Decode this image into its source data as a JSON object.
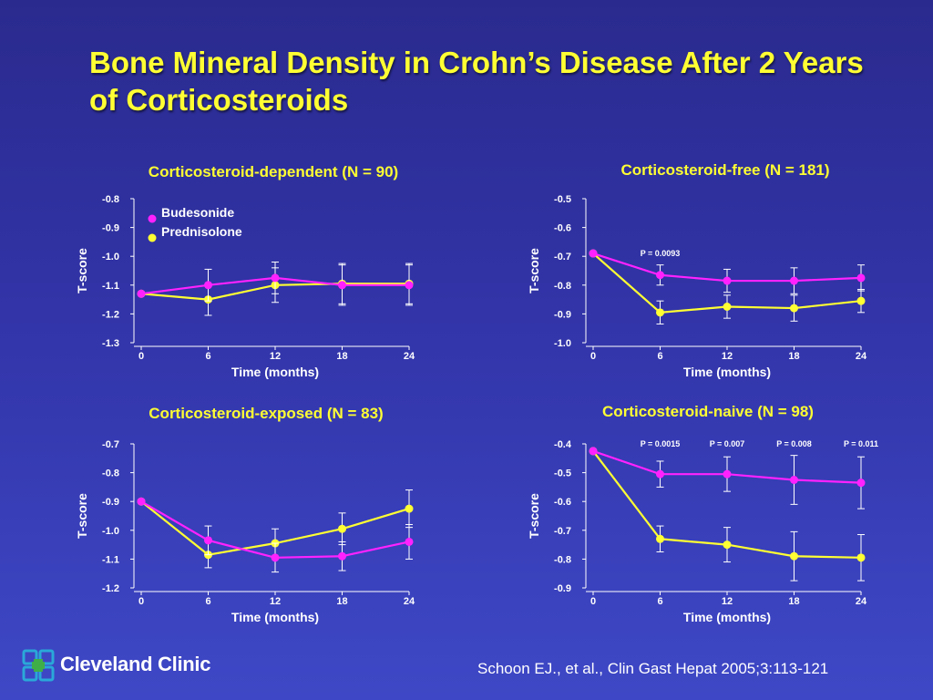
{
  "slide": {
    "title": "Bone Mineral Density in Crohn’s Disease After 2 Years of Corticosteroids",
    "citation": "Schoon EJ., et al., Clin Gast Hepat 2005;3:113-121",
    "logo_text": "Cleveland Clinic"
  },
  "colors": {
    "budesonide": "#ff22ff",
    "prednisolone": "#ffff33",
    "panel_title": "#ffff33",
    "axis": "#ffffff",
    "background_top": "#2a2a8e",
    "background_bottom": "#3e48c6"
  },
  "chart_data": [
    {
      "type": "line",
      "title": "Corticosteroid-dependent (N = 90)",
      "xlabel": "Time (months)",
      "ylabel": "T-score",
      "x": [
        0,
        6,
        12,
        18,
        24
      ],
      "xlim": [
        0,
        24
      ],
      "ylim": [
        -1.3,
        -0.8
      ],
      "yticks": [
        "-0.8",
        "-0.9",
        "-1.0",
        "-1.1",
        "-1.2",
        "-1.3"
      ],
      "legend": "top-left",
      "grid": false,
      "series": [
        {
          "name": "Budesonide",
          "values": [
            -1.13,
            -1.1,
            -1.075,
            -1.1,
            -1.1
          ],
          "error": [
            0,
            0.055,
            0.055,
            0.07,
            0.07
          ]
        },
        {
          "name": "Prednisolone",
          "values": [
            -1.13,
            -1.15,
            -1.1,
            -1.095,
            -1.095
          ],
          "error": [
            0,
            0.055,
            0.06,
            0.07,
            0.07
          ]
        }
      ],
      "annotations": []
    },
    {
      "type": "line",
      "title": "Corticosteroid-free (N = 181)",
      "xlabel": "Time (months)",
      "ylabel": "T-score",
      "x": [
        0,
        6,
        12,
        18,
        24
      ],
      "xlim": [
        0,
        24
      ],
      "ylim": [
        -1.0,
        -0.5
      ],
      "yticks": [
        "-0.5",
        "-0.6",
        "-0.7",
        "-0.8",
        "-0.9",
        "-1.0"
      ],
      "grid": false,
      "series": [
        {
          "name": "Budesonide",
          "values": [
            -0.69,
            -0.765,
            -0.785,
            -0.785,
            -0.775
          ],
          "error": [
            0,
            0.035,
            0.04,
            0.045,
            0.045
          ]
        },
        {
          "name": "Prednisolone",
          "values": [
            -0.69,
            -0.895,
            -0.875,
            -0.88,
            -0.855
          ],
          "error": [
            0,
            0.04,
            0.04,
            0.045,
            0.04
          ]
        }
      ],
      "annotations": [
        {
          "x": 6,
          "y": -0.69,
          "text": "P = 0.0093"
        }
      ]
    },
    {
      "type": "line",
      "title": "Corticosteroid-exposed (N = 83)",
      "xlabel": "Time (months)",
      "ylabel": "T-score",
      "x": [
        0,
        6,
        12,
        18,
        24
      ],
      "xlim": [
        0,
        24
      ],
      "ylim": [
        -1.2,
        -0.7
      ],
      "yticks": [
        "-0.7",
        "-0.8",
        "-0.9",
        "-1.0",
        "-1.1",
        "-1.2"
      ],
      "grid": false,
      "series": [
        {
          "name": "Budesonide",
          "values": [
            -0.9,
            -1.035,
            -1.095,
            -1.09,
            -1.04
          ],
          "error": [
            0,
            0.05,
            0.05,
            0.05,
            0.06
          ]
        },
        {
          "name": "Prednisolone",
          "values": [
            -0.9,
            -1.085,
            -1.045,
            -0.995,
            -0.925
          ],
          "error": [
            0,
            0.045,
            0.05,
            0.055,
            0.065
          ]
        }
      ],
      "annotations": []
    },
    {
      "type": "line",
      "title": "Corticosteroid-naive (N = 98)",
      "xlabel": "Time (months)",
      "ylabel": "T-score",
      "x": [
        0,
        6,
        12,
        18,
        24
      ],
      "xlim": [
        0,
        24
      ],
      "ylim": [
        -0.9,
        -0.4
      ],
      "yticks": [
        "-0.4",
        "-0.5",
        "-0.6",
        "-0.7",
        "-0.8",
        "-0.9"
      ],
      "grid": false,
      "series": [
        {
          "name": "Budesonide",
          "values": [
            -0.425,
            -0.505,
            -0.505,
            -0.525,
            -0.535
          ],
          "error": [
            0,
            0.045,
            0.06,
            0.085,
            0.09
          ]
        },
        {
          "name": "Prednisolone",
          "values": [
            -0.425,
            -0.73,
            -0.75,
            -0.79,
            -0.795
          ],
          "error": [
            0,
            0.045,
            0.06,
            0.085,
            0.08
          ]
        }
      ],
      "annotations": [
        {
          "x": 6,
          "y": -0.4,
          "text": "P = 0.0015"
        },
        {
          "x": 12,
          "y": -0.4,
          "text": "P = 0.007"
        },
        {
          "x": 18,
          "y": -0.4,
          "text": "P = 0.008"
        },
        {
          "x": 24,
          "y": -0.4,
          "text": "P = 0.011"
        }
      ]
    }
  ]
}
